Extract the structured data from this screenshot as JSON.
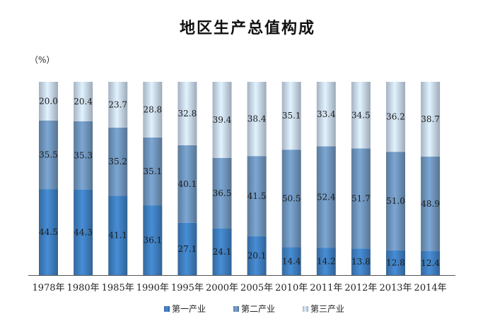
{
  "chart_data": {
    "type": "bar",
    "stacked": true,
    "percent": true,
    "title": "地区生产总值构成",
    "unit_label": "（%）",
    "categories": [
      "1978年",
      "1980年",
      "1985年",
      "1990年",
      "1995年",
      "2000年",
      "2005年",
      "2010年",
      "2011年",
      "2012年",
      "2013年",
      "2014年"
    ],
    "ylim": [
      0,
      100
    ],
    "grid": false,
    "legend_position": "bottom",
    "series": [
      {
        "name": "第一产业",
        "color": "#3f7fc0",
        "values": [
          44.5,
          44.3,
          41.1,
          36.1,
          27.1,
          24.1,
          20.1,
          14.4,
          14.2,
          13.8,
          12.8,
          12.4
        ]
      },
      {
        "name": "第二产业",
        "color": "#6f95bd",
        "values": [
          35.5,
          35.3,
          35.2,
          35.1,
          40.1,
          36.5,
          41.5,
          50.5,
          52.4,
          51.7,
          51.0,
          48.9
        ]
      },
      {
        "name": "第三产业",
        "color": "#c9d9ec",
        "values": [
          20.0,
          20.4,
          23.7,
          28.8,
          32.8,
          39.4,
          38.4,
          35.1,
          33.4,
          34.5,
          36.2,
          38.7
        ]
      }
    ]
  }
}
